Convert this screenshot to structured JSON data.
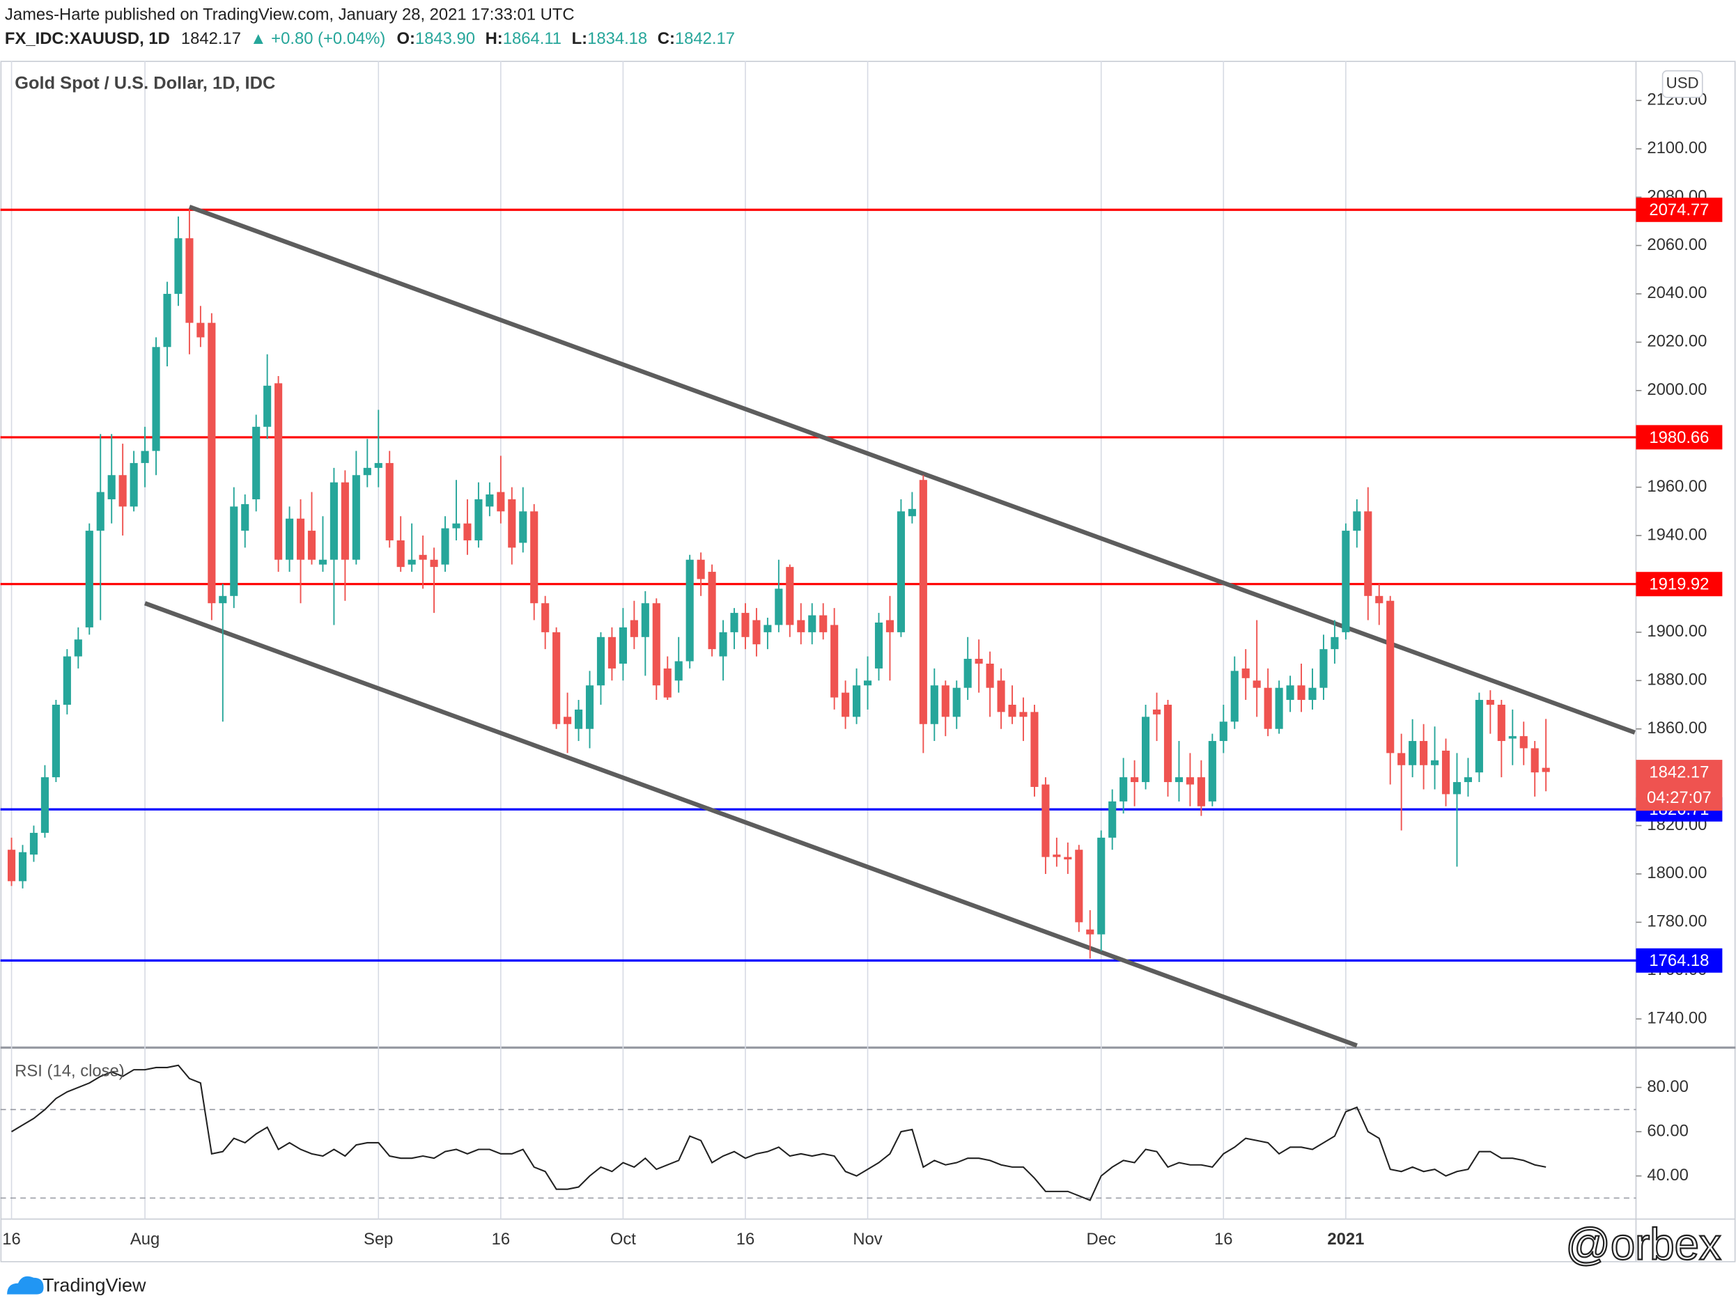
{
  "header": {
    "author": "James-Harte published on TradingView.com, January 28, 2021 17:33:01 UTC",
    "ticker": "FX_IDC:XAUUSD, 1D",
    "last": "1842.17",
    "change": "▲ +0.80 (+0.04%)",
    "o_label": "O:",
    "o": "1843.90",
    "h_label": "H:",
    "h": "1864.11",
    "l_label": "L:",
    "l": "1834.18",
    "c_label": "C:",
    "c": "1842.17"
  },
  "chart_data": {
    "type": "candlestick",
    "title": "Gold Spot / U.S. Dollar, 1D, IDC",
    "currency": "USD",
    "up_color": "#26a69a",
    "down_color": "#ef5350",
    "ohlc": [
      [
        1810,
        1815,
        1795,
        1797
      ],
      [
        1797,
        1812,
        1794,
        1809
      ],
      [
        1808,
        1820,
        1805,
        1817
      ],
      [
        1817,
        1845,
        1815,
        1840
      ],
      [
        1840,
        1872,
        1838,
        1870
      ],
      [
        1870,
        1893,
        1866,
        1890
      ],
      [
        1890,
        1902,
        1885,
        1897
      ],
      [
        1902,
        1945,
        1899,
        1942
      ],
      [
        1942,
        1982,
        1905,
        1958
      ],
      [
        1955,
        1982,
        1945,
        1965
      ],
      [
        1965,
        1978,
        1940,
        1952
      ],
      [
        1952,
        1975,
        1950,
        1970
      ],
      [
        1970,
        1985,
        1960,
        1975
      ],
      [
        1975,
        2022,
        1965,
        2018
      ],
      [
        2018,
        2045,
        2010,
        2040
      ],
      [
        2040,
        2072,
        2035,
        2063
      ],
      [
        2063,
        2075,
        2015,
        2028
      ],
      [
        2028,
        2035,
        2018,
        2022
      ],
      [
        2028,
        2032,
        1905,
        1912
      ],
      [
        1912,
        1920,
        1863,
        1915
      ],
      [
        1915,
        1960,
        1910,
        1952
      ],
      [
        1942,
        1957,
        1935,
        1953
      ],
      [
        1955,
        1990,
        1950,
        1985
      ],
      [
        1985,
        2015,
        1980,
        2002
      ],
      [
        2003,
        2006,
        1925,
        1930
      ],
      [
        1930,
        1952,
        1925,
        1947
      ],
      [
        1947,
        1955,
        1912,
        1930
      ],
      [
        1942,
        1958,
        1928,
        1930
      ],
      [
        1928,
        1948,
        1925,
        1930
      ],
      [
        1930,
        1968,
        1903,
        1962
      ],
      [
        1962,
        1967,
        1913,
        1930
      ],
      [
        1930,
        1975,
        1928,
        1965
      ],
      [
        1965,
        1980,
        1960,
        1968
      ],
      [
        1968,
        1992,
        1960,
        1970
      ],
      [
        1970,
        1975,
        1935,
        1938
      ],
      [
        1938,
        1948,
        1925,
        1927
      ],
      [
        1928,
        1945,
        1925,
        1930
      ],
      [
        1932,
        1940,
        1918,
        1930
      ],
      [
        1930,
        1935,
        1908,
        1927
      ],
      [
        1928,
        1948,
        1925,
        1943
      ],
      [
        1943,
        1963,
        1938,
        1945
      ],
      [
        1945,
        1955,
        1932,
        1938
      ],
      [
        1938,
        1962,
        1935,
        1955
      ],
      [
        1952,
        1962,
        1948,
        1957
      ],
      [
        1958,
        1973,
        1945,
        1950
      ],
      [
        1955,
        1960,
        1928,
        1935
      ],
      [
        1937,
        1960,
        1933,
        1950
      ],
      [
        1950,
        1953,
        1905,
        1912
      ],
      [
        1912,
        1915,
        1893,
        1900
      ],
      [
        1900,
        1902,
        1860,
        1862
      ],
      [
        1865,
        1875,
        1850,
        1862
      ],
      [
        1860,
        1872,
        1855,
        1868
      ],
      [
        1860,
        1884,
        1852,
        1878
      ],
      [
        1878,
        1900,
        1870,
        1898
      ],
      [
        1898,
        1902,
        1880,
        1885
      ],
      [
        1887,
        1910,
        1880,
        1902
      ],
      [
        1905,
        1913,
        1893,
        1898
      ],
      [
        1898,
        1917,
        1882,
        1912
      ],
      [
        1912,
        1914,
        1872,
        1878
      ],
      [
        1885,
        1890,
        1872,
        1873
      ],
      [
        1880,
        1898,
        1875,
        1888
      ],
      [
        1888,
        1932,
        1885,
        1930
      ],
      [
        1930,
        1933,
        1915,
        1922
      ],
      [
        1925,
        1928,
        1890,
        1893
      ],
      [
        1890,
        1905,
        1880,
        1900
      ],
      [
        1900,
        1910,
        1893,
        1908
      ],
      [
        1908,
        1912,
        1893,
        1898
      ],
      [
        1905,
        1910,
        1890,
        1895
      ],
      [
        1900,
        1906,
        1893,
        1903
      ],
      [
        1903,
        1930,
        1900,
        1918
      ],
      [
        1927,
        1928,
        1898,
        1903
      ],
      [
        1905,
        1912,
        1895,
        1900
      ],
      [
        1900,
        1912,
        1895,
        1907
      ],
      [
        1907,
        1912,
        1897,
        1900
      ],
      [
        1903,
        1910,
        1868,
        1873
      ],
      [
        1875,
        1880,
        1860,
        1865
      ],
      [
        1865,
        1885,
        1862,
        1878
      ],
      [
        1878,
        1890,
        1868,
        1880
      ],
      [
        1885,
        1908,
        1880,
        1904
      ],
      [
        1905,
        1915,
        1880,
        1900
      ],
      [
        1900,
        1955,
        1898,
        1950
      ],
      [
        1948,
        1958,
        1945,
        1951
      ],
      [
        1963,
        1965,
        1850,
        1862
      ],
      [
        1862,
        1885,
        1855,
        1878
      ],
      [
        1878,
        1880,
        1857,
        1865
      ],
      [
        1865,
        1880,
        1860,
        1877
      ],
      [
        1877,
        1898,
        1872,
        1889
      ],
      [
        1889,
        1897,
        1875,
        1887
      ],
      [
        1887,
        1892,
        1865,
        1877
      ],
      [
        1880,
        1885,
        1860,
        1867
      ],
      [
        1870,
        1878,
        1862,
        1865
      ],
      [
        1867,
        1873,
        1855,
        1865
      ],
      [
        1867,
        1870,
        1832,
        1836
      ],
      [
        1837,
        1840,
        1800,
        1807
      ],
      [
        1808,
        1815,
        1803,
        1807
      ],
      [
        1807,
        1813,
        1800,
        1806
      ],
      [
        1810,
        1812,
        1776,
        1780
      ],
      [
        1777,
        1785,
        1765,
        1775
      ],
      [
        1775,
        1818,
        1768,
        1815
      ],
      [
        1815,
        1835,
        1810,
        1830
      ],
      [
        1830,
        1848,
        1825,
        1840
      ],
      [
        1840,
        1847,
        1828,
        1838
      ],
      [
        1838,
        1870,
        1835,
        1865
      ],
      [
        1868,
        1875,
        1855,
        1866
      ],
      [
        1870,
        1872,
        1832,
        1838
      ],
      [
        1838,
        1855,
        1830,
        1840
      ],
      [
        1840,
        1850,
        1828,
        1837
      ],
      [
        1840,
        1847,
        1824,
        1828
      ],
      [
        1830,
        1858,
        1828,
        1855
      ],
      [
        1855,
        1870,
        1850,
        1863
      ],
      [
        1863,
        1890,
        1860,
        1884
      ],
      [
        1885,
        1893,
        1872,
        1881
      ],
      [
        1880,
        1905,
        1865,
        1877
      ],
      [
        1877,
        1885,
        1857,
        1860
      ],
      [
        1860,
        1880,
        1858,
        1877
      ],
      [
        1872,
        1882,
        1867,
        1878
      ],
      [
        1878,
        1887,
        1867,
        1872
      ],
      [
        1872,
        1885,
        1868,
        1877
      ],
      [
        1877,
        1899,
        1872,
        1893
      ],
      [
        1893,
        1905,
        1887,
        1898
      ],
      [
        1900,
        1945,
        1897,
        1942
      ],
      [
        1942,
        1955,
        1935,
        1950
      ],
      [
        1950,
        1960,
        1905,
        1915
      ],
      [
        1915,
        1920,
        1903,
        1912
      ],
      [
        1913,
        1915,
        1837,
        1850
      ],
      [
        1850,
        1858,
        1818,
        1845
      ],
      [
        1845,
        1864,
        1840,
        1855
      ],
      [
        1855,
        1862,
        1835,
        1845
      ],
      [
        1845,
        1861,
        1835,
        1847
      ],
      [
        1851,
        1856,
        1828,
        1833
      ],
      [
        1833,
        1850,
        1803,
        1838
      ],
      [
        1838,
        1848,
        1832,
        1840
      ],
      [
        1842,
        1875,
        1838,
        1872
      ],
      [
        1872,
        1876,
        1858,
        1870
      ],
      [
        1870,
        1872,
        1840,
        1855
      ],
      [
        1856,
        1868,
        1845,
        1857
      ],
      [
        1857,
        1863,
        1845,
        1852
      ],
      [
        1852,
        1855,
        1832,
        1842
      ],
      [
        1843.9,
        1864.11,
        1834.18,
        1842.17
      ]
    ],
    "ylim": [
      1728.6,
      2136.4
    ],
    "yticks": [
      {
        "value": 1740,
        "label": "1740.00"
      },
      {
        "value": 1760,
        "label": "1760.00"
      },
      {
        "value": 1780,
        "label": "1780.00"
      },
      {
        "value": 1800,
        "label": "1800.00"
      },
      {
        "value": 1820,
        "label": "1820.00"
      },
      {
        "value": 1840,
        "label": "1840.00"
      },
      {
        "value": 1860,
        "label": "1860.00"
      },
      {
        "value": 1880,
        "label": "1880.00"
      },
      {
        "value": 1900,
        "label": "1900.00"
      },
      {
        "value": 1920,
        "label": "1920.00"
      },
      {
        "value": 1940,
        "label": "1940.00"
      },
      {
        "value": 1960,
        "label": "1960.00"
      },
      {
        "value": 1980,
        "label": "1980.00"
      },
      {
        "value": 2000,
        "label": "2000.00"
      },
      {
        "value": 2020,
        "label": "2020.00"
      },
      {
        "value": 2040,
        "label": "2040.00"
      },
      {
        "value": 2060,
        "label": "2060.00"
      },
      {
        "value": 2080,
        "label": "2080.00"
      },
      {
        "value": 2100,
        "label": "2100.00"
      },
      {
        "value": 2120,
        "label": "2120.00"
      }
    ],
    "xlim": [
      -1,
      146.1
    ],
    "xticks": [
      {
        "value": 0,
        "label": "16"
      },
      {
        "value": 12,
        "label": "Aug"
      },
      {
        "value": 33,
        "label": "Sep"
      },
      {
        "value": 44,
        "label": "16"
      },
      {
        "value": 55,
        "label": "Oct"
      },
      {
        "value": 66,
        "label": "16"
      },
      {
        "value": 77,
        "label": "Nov"
      },
      {
        "value": 98,
        "label": "Dec"
      },
      {
        "value": 109,
        "label": "16"
      },
      {
        "value": 120,
        "label": "2021"
      }
    ],
    "grid": true,
    "hlines": [
      {
        "value": 2074.77,
        "color": "#ff0000"
      },
      {
        "value": 1980.66,
        "color": "#ff0000"
      },
      {
        "value": 1919.92,
        "color": "#ff0000"
      },
      {
        "value": 1826.71,
        "color": "#0000ff"
      },
      {
        "value": 1764.18,
        "color": "#0000ff"
      }
    ],
    "last_price": 1842.17,
    "countdown": "04:27:07",
    "trendlines": [
      {
        "x": [
          16,
          146
        ],
        "y": [
          2076,
          1858.5
        ],
        "color": "#5d5d5d"
      },
      {
        "x": [
          12,
          121
        ],
        "y": [
          1912,
          1729
        ],
        "color": "#5d5d5d"
      }
    ],
    "rsi": {
      "title": "RSI (14, close)",
      "color": "#222222",
      "ylim": [
        20.5,
        97.5
      ],
      "yticks": [
        {
          "value": 80,
          "label": "80.00"
        },
        {
          "value": 60,
          "label": "60.00"
        },
        {
          "value": 40,
          "label": "40.00"
        }
      ],
      "bands": [
        70,
        30
      ],
      "values": [
        60,
        63,
        66,
        70,
        75,
        78,
        80,
        82,
        85,
        87,
        85,
        88,
        88,
        89,
        89,
        90,
        84,
        82,
        50,
        51,
        57,
        55,
        59,
        62,
        52,
        55,
        52,
        50,
        49,
        52,
        49,
        54,
        55,
        55,
        49,
        48,
        48,
        49,
        48,
        51,
        52,
        50,
        52,
        52,
        50,
        50,
        52,
        44,
        42,
        34,
        34,
        35,
        40,
        44,
        42,
        46,
        44,
        48,
        43,
        45,
        47,
        58,
        56,
        46,
        49,
        51,
        48,
        50,
        51,
        53,
        49,
        50,
        49,
        50,
        49,
        42,
        40,
        43,
        46,
        50,
        60,
        61,
        44,
        47,
        45,
        46,
        48,
        48,
        47,
        45,
        44,
        44,
        39,
        33,
        33,
        33,
        31,
        29,
        40,
        44,
        47,
        46,
        52,
        51,
        44,
        46,
        45,
        45,
        44,
        50,
        53,
        57,
        56,
        55,
        50,
        53,
        53,
        52,
        55,
        58,
        69,
        71,
        60,
        57,
        43,
        42,
        44,
        42,
        43,
        40,
        42,
        43,
        51,
        51,
        48,
        48,
        47,
        45,
        44
      ]
    }
  },
  "footer": {
    "brand": "TradingView",
    "watermark": "@orbex"
  }
}
